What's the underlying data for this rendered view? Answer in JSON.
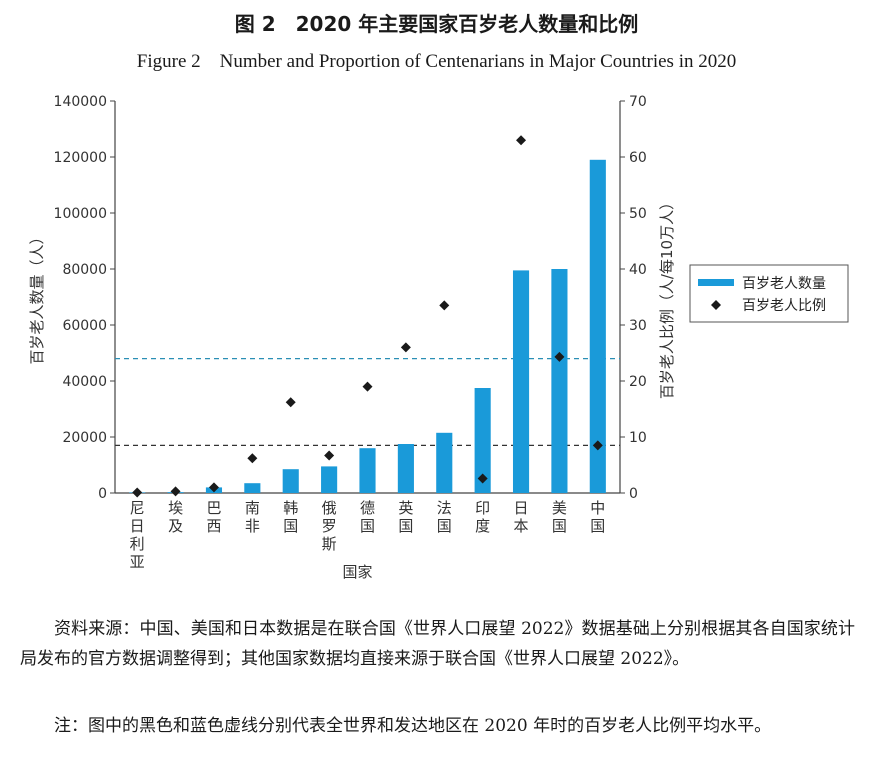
{
  "title_cn": "图 2　2020 年主要国家百岁老人数量和比例",
  "title_en": "Figure 2　Number and Proportion of Centenarians in Major Countries in 2020",
  "chart_data": {
    "type": "bar",
    "categories": [
      "尼日利亚",
      "埃及",
      "巴西",
      "南非",
      "韩国",
      "俄罗斯",
      "德国",
      "英国",
      "法国",
      "印度",
      "日本",
      "美国",
      "中国"
    ],
    "series": [
      {
        "name": "百岁老人数量",
        "type": "bar",
        "axis": "left",
        "color": "#1a9ad9",
        "values": [
          200,
          300,
          2000,
          3500,
          8500,
          9500,
          16000,
          17500,
          21500,
          37500,
          79500,
          80000,
          119000
        ]
      },
      {
        "name": "百岁老人比例",
        "type": "scatter",
        "axis": "right",
        "marker": "diamond",
        "color": "#1a1a1a",
        "values": [
          0.1,
          0.3,
          1.0,
          6.2,
          16.2,
          6.7,
          19.0,
          26.0,
          33.5,
          2.6,
          63.0,
          24.3,
          8.5
        ]
      }
    ],
    "xlabel": "国家",
    "ylabel": "百岁老人数量（人）",
    "ylabel_right": "百岁老人比例（人/每10万人）",
    "ylim": [
      0,
      140000
    ],
    "ylim_right": [
      0,
      70
    ],
    "yticks": [
      "0",
      "20000",
      "40000",
      "60000",
      "80000",
      "100000",
      "120000",
      "140000"
    ],
    "yticks_right": [
      "0",
      "10",
      "20",
      "30",
      "40",
      "50",
      "60",
      "70"
    ],
    "reference_lines": [
      {
        "value_right": 8.5,
        "color": "#333333",
        "style": "dashed"
      },
      {
        "value_right": 24.0,
        "color": "#2a8fb5",
        "style": "dashed"
      }
    ],
    "legend_position": "right",
    "grid": false
  },
  "notes": {
    "source": "资料来源：中国、美国和日本数据是在联合国《世界人口展望 2022》数据基础上分别根据其各自国家统计局发布的官方数据调整得到；其他国家数据均直接来源于联合国《世界人口展望 2022》。",
    "note": "注：图中的黑色和蓝色虚线分别代表全世界和发达地区在 2020 年时的百岁老人比例平均水平。"
  }
}
